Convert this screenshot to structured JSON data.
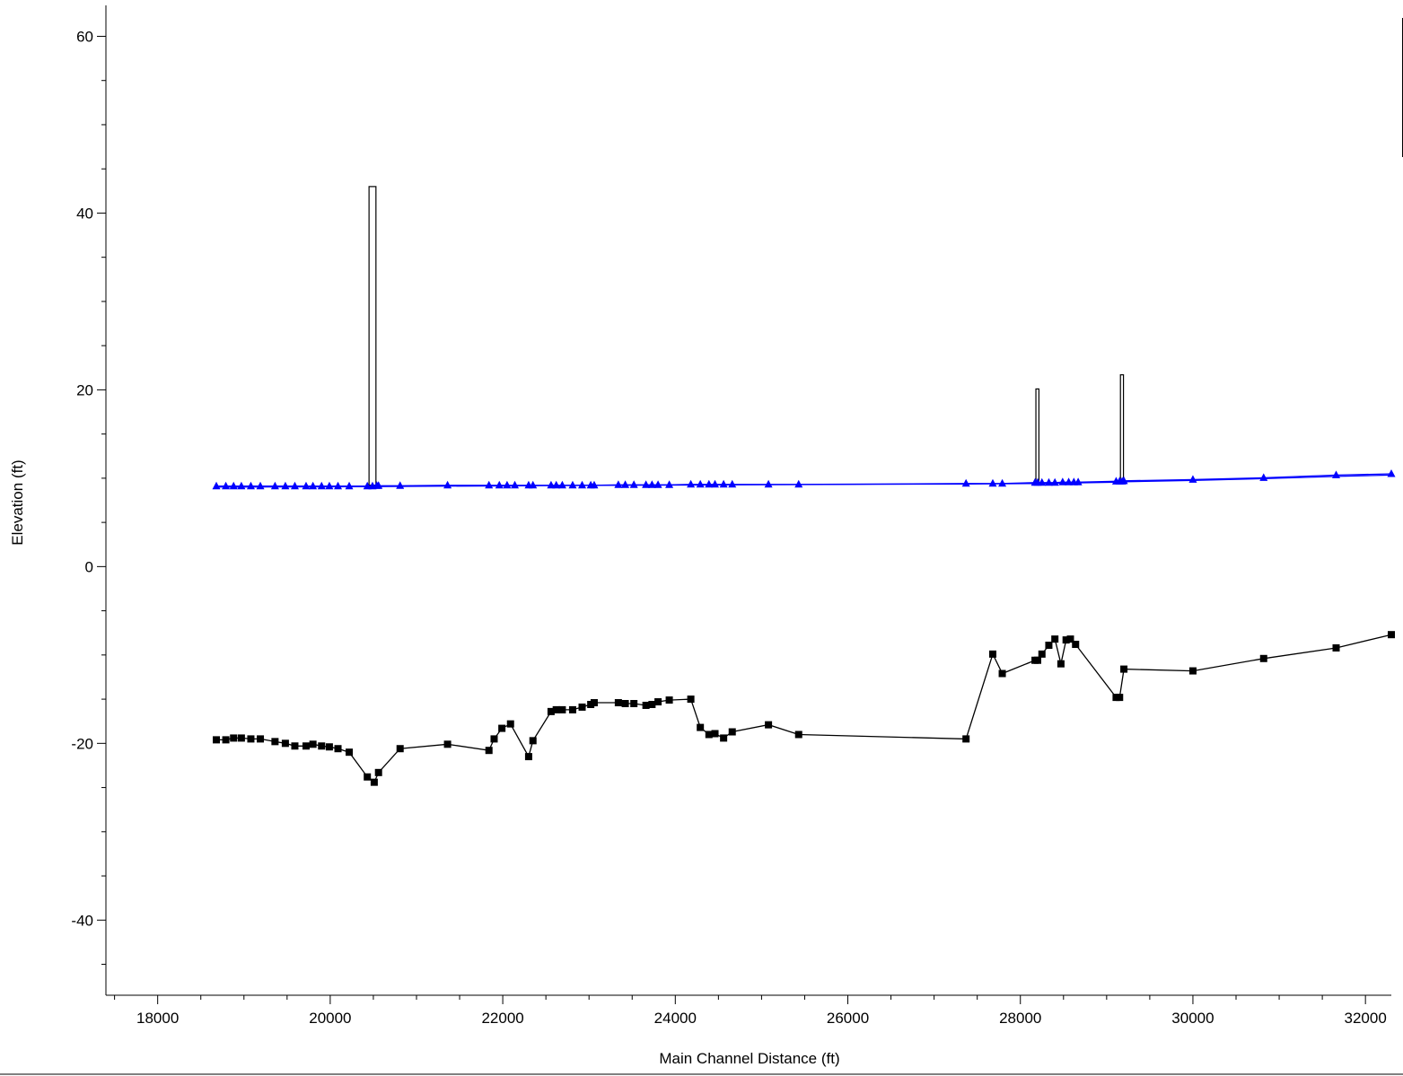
{
  "chart_data": {
    "type": "line",
    "title": "",
    "xlabel": "Main Channel Distance (ft)",
    "ylabel": "Elevation (ft)",
    "xlim": [
      17400,
      32300
    ],
    "ylim": [
      -48.5,
      63.5
    ],
    "x_ticks": [
      18000,
      20000,
      22000,
      24000,
      26000,
      28000,
      30000,
      32000
    ],
    "y_ticks": [
      -40,
      -20,
      0,
      20,
      40,
      60
    ],
    "grid": false,
    "legend": "none",
    "colors": {
      "ws": "#0000ff",
      "ground": "#000000",
      "structure": "#000000"
    },
    "series": [
      {
        "marker": "triangle",
        "color": "#0000ff",
        "x": [
          18680,
          18790,
          18880,
          18970,
          19080,
          19190,
          19360,
          19480,
          19590,
          19720,
          19800,
          19900,
          19990,
          20090,
          20220,
          20430,
          20490,
          20540,
          20560,
          20810,
          21360,
          21840,
          21960,
          22050,
          22140,
          22300,
          22350,
          22560,
          22620,
          22690,
          22810,
          22920,
          23020,
          23060,
          23340,
          23420,
          23520,
          23660,
          23730,
          23800,
          23930,
          24180,
          24290,
          24390,
          24460,
          24560,
          24660,
          25080,
          25430,
          27370,
          27680,
          27790,
          28170,
          28200,
          28250,
          28330,
          28400,
          28490,
          28560,
          28620,
          28670,
          29110,
          29150,
          29180,
          29200,
          30000,
          30820,
          31660,
          32300
        ],
        "values": [
          9.1,
          9.1,
          9.1,
          9.1,
          9.1,
          9.1,
          9.1,
          9.1,
          9.1,
          9.1,
          9.1,
          9.1,
          9.1,
          9.1,
          9.1,
          9.1,
          9.1,
          9.15,
          9.15,
          9.15,
          9.2,
          9.2,
          9.2,
          9.2,
          9.2,
          9.2,
          9.2,
          9.2,
          9.2,
          9.2,
          9.2,
          9.2,
          9.2,
          9.2,
          9.25,
          9.25,
          9.25,
          9.25,
          9.25,
          9.25,
          9.25,
          9.3,
          9.3,
          9.3,
          9.3,
          9.3,
          9.3,
          9.3,
          9.3,
          9.4,
          9.4,
          9.4,
          9.5,
          9.5,
          9.5,
          9.5,
          9.5,
          9.55,
          9.55,
          9.55,
          9.55,
          9.65,
          9.65,
          9.65,
          9.7,
          9.85,
          10.05,
          10.35,
          10.5
        ]
      },
      {
        "marker": "none",
        "color": "#0000ff",
        "x": [
          18680,
          20500,
          23000,
          27400,
          28200,
          29100,
          29200,
          30000,
          30820,
          31660,
          32300
        ],
        "values": [
          9.0,
          9.05,
          9.2,
          9.35,
          9.4,
          9.55,
          9.6,
          9.75,
          9.95,
          10.2,
          10.35
        ]
      },
      {
        "marker": "square",
        "color": "#000000",
        "x": [
          18680,
          18790,
          18880,
          18970,
          19080,
          19190,
          19360,
          19480,
          19590,
          19720,
          19800,
          19900,
          19990,
          20090,
          20220,
          20430,
          20510,
          20560,
          20810,
          21360,
          21840,
          21900,
          21990,
          22090,
          22300,
          22350,
          22560,
          22620,
          22690,
          22810,
          22920,
          23020,
          23060,
          23340,
          23420,
          23520,
          23660,
          23730,
          23800,
          23930,
          24180,
          24290,
          24390,
          24460,
          24560,
          24660,
          25080,
          25430,
          27370,
          27680,
          27790,
          28170,
          28200,
          28250,
          28330,
          28400,
          28470,
          28530,
          28580,
          28640,
          29110,
          29150,
          29200,
          30000,
          30820,
          31660,
          32300
        ],
        "values": [
          -19.6,
          -19.6,
          -19.4,
          -19.4,
          -19.5,
          -19.5,
          -19.8,
          -20.0,
          -20.3,
          -20.3,
          -20.1,
          -20.3,
          -20.4,
          -20.6,
          -21.0,
          -23.8,
          -24.4,
          -23.3,
          -20.6,
          -20.1,
          -20.8,
          -19.5,
          -18.3,
          -17.8,
          -21.5,
          -19.7,
          -16.4,
          -16.2,
          -16.2,
          -16.2,
          -15.9,
          -15.6,
          -15.4,
          -15.4,
          -15.5,
          -15.5,
          -15.7,
          -15.6,
          -15.3,
          -15.1,
          -15.0,
          -18.2,
          -19.0,
          -18.9,
          -19.4,
          -18.7,
          -17.9,
          -19.0,
          -19.5,
          -9.9,
          -12.1,
          -10.6,
          -10.6,
          -9.9,
          -8.9,
          -8.2,
          -11.0,
          -8.3,
          -8.2,
          -8.8,
          -14.8,
          -14.8,
          -11.6,
          -11.8,
          -10.4,
          -9.2,
          -7.7
        ]
      }
    ],
    "structures": [
      {
        "x_start": 20450,
        "x_end": 20530,
        "top": 43.0,
        "bottom": 9.2
      },
      {
        "x_start": 28180,
        "x_end": 28215,
        "top": 20.1,
        "bottom": 9.5
      },
      {
        "x_start": 29160,
        "x_end": 29195,
        "top": 21.7,
        "bottom": 9.65
      }
    ]
  }
}
